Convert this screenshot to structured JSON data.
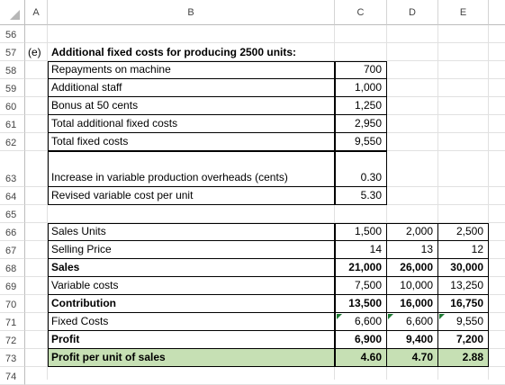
{
  "columns": [
    "A",
    "B",
    "C",
    "D",
    "E"
  ],
  "rows": [
    "56",
    "57",
    "58",
    "59",
    "60",
    "61",
    "62",
    "63",
    "64",
    "65",
    "66",
    "67",
    "68",
    "69",
    "70",
    "71",
    "72",
    "73",
    "74"
  ],
  "section_label": "(e)",
  "section_title": "Additional fixed costs for producing 2500 units:",
  "fixed_costs": [
    {
      "label": "Repayments on machine",
      "value": "700"
    },
    {
      "label": "Additional staff",
      "value": "1,000"
    },
    {
      "label": "Bonus at 50 cents",
      "value": "1,250"
    },
    {
      "label": "Total additional fixed costs",
      "value": "2,950"
    },
    {
      "label": "Total fixed costs",
      "value": "9,550"
    }
  ],
  "variable": [
    {
      "label": "Increase in variable production overheads (cents)",
      "value": "0.30"
    },
    {
      "label": "Revised variable cost per unit",
      "value": "5.30"
    }
  ],
  "table": [
    {
      "label": "Sales Units",
      "c": "1,500",
      "d": "2,000",
      "e": "2,500",
      "bold": false
    },
    {
      "label": "Selling Price",
      "c": "14",
      "d": "13",
      "e": "12",
      "bold": false
    },
    {
      "label": "Sales",
      "c": "21,000",
      "d": "26,000",
      "e": "30,000",
      "bold": true
    },
    {
      "label": "Variable costs",
      "c": "7,500",
      "d": "10,000",
      "e": "13,250",
      "bold": false
    },
    {
      "label": "Contribution",
      "c": "13,500",
      "d": "16,000",
      "e": "16,750",
      "bold": true
    },
    {
      "label": "Fixed Costs",
      "c": "6,600",
      "d": "6,600",
      "e": "9,550",
      "bold": false
    },
    {
      "label": "Profit",
      "c": "6,900",
      "d": "9,400",
      "e": "7,200",
      "bold": true
    },
    {
      "label": "Profit per unit of sales",
      "c": "4.60",
      "d": "4.70",
      "e": "2.88",
      "bold": true
    }
  ],
  "colors": {
    "highlight": "#c6e0b4",
    "error_triangle": "#1e7b34"
  }
}
